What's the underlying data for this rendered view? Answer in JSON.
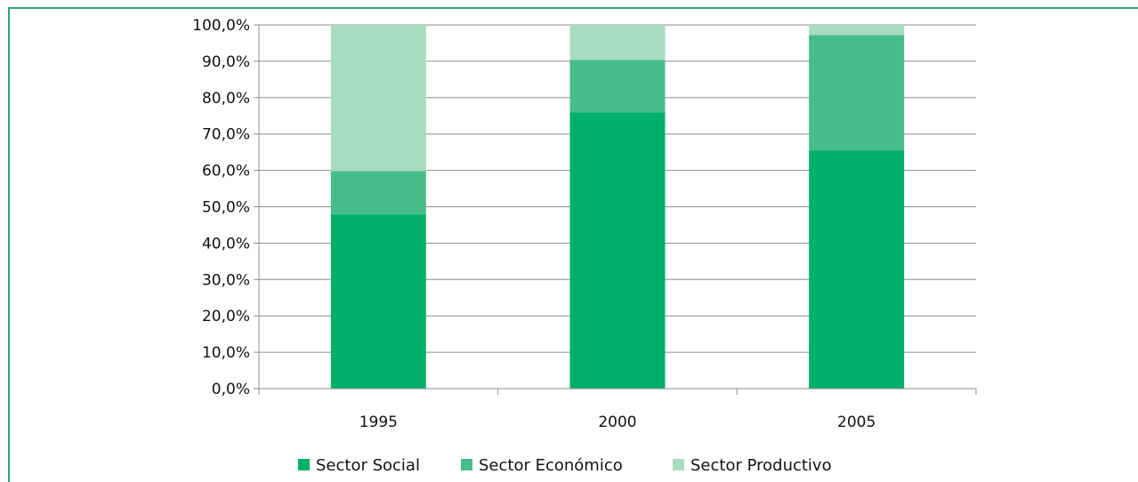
{
  "chart_data": {
    "type": "bar",
    "stacked": true,
    "categories": [
      "1995",
      "2000",
      "2005"
    ],
    "series": [
      {
        "name": "Sector Social",
        "color": "#00b068",
        "values": [
          48.0,
          76.0,
          65.5
        ]
      },
      {
        "name": "Sector Económico",
        "color": "#48bd89",
        "values": [
          11.8,
          14.4,
          31.7
        ]
      },
      {
        "name": "Sector Productivo",
        "color": "#a8dcbe",
        "values": [
          40.2,
          9.6,
          2.8
        ]
      }
    ],
    "ylim": [
      0,
      100
    ],
    "ytick_step": 10,
    "yticks": [
      "0,0%",
      "10,0%",
      "20,0%",
      "30,0%",
      "40,0%",
      "50,0%",
      "60,0%",
      "70,0%",
      "80,0%",
      "90,0%",
      "100,0%"
    ],
    "grid": true,
    "legend_position": "bottom",
    "title": "",
    "xlabel": "",
    "ylabel": ""
  }
}
